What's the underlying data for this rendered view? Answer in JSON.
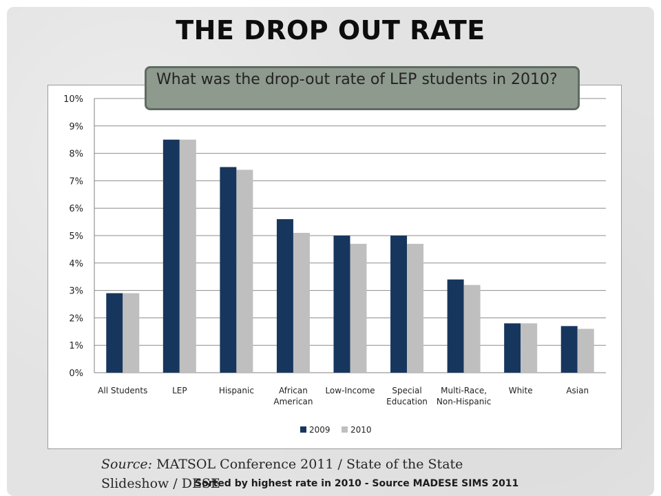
{
  "slide": {
    "title": "THE DROP OUT RATE",
    "callout": "What was the drop-out rate of LEP students in 2010?",
    "source_prefix": "Source:",
    "source_text": "MATSOL Conference 2011 / State of the State Slideshow / DESE",
    "note": "Sorted by highest rate in 2010 - Source MADESE SIMS 2011"
  },
  "colors": {
    "series_2009": "#17365d",
    "series_2010": "#bfbfbf",
    "callout_bg": "#8e9a8e",
    "grid": "#8c8c8c"
  },
  "chart_data": {
    "type": "bar",
    "title": "",
    "xlabel": "",
    "ylabel": "",
    "ylim": [
      0,
      10
    ],
    "yunit": "%",
    "yticks": [
      "0%",
      "1%",
      "2%",
      "3%",
      "4%",
      "5%",
      "6%",
      "7%",
      "8%",
      "9%",
      "10%"
    ],
    "grid": true,
    "legend": "bottom",
    "categories": [
      [
        "All Students"
      ],
      [
        "LEP"
      ],
      [
        "Hispanic"
      ],
      [
        "African",
        "American"
      ],
      [
        "Low-Income"
      ],
      [
        "Special",
        "Education"
      ],
      [
        "Multi-Race,",
        "Non-Hispanic"
      ],
      [
        "White"
      ],
      [
        "Asian"
      ]
    ],
    "series": [
      {
        "name": "2009",
        "values": [
          2.9,
          8.5,
          7.5,
          5.6,
          5.0,
          5.0,
          3.4,
          1.8,
          1.7
        ]
      },
      {
        "name": "2010",
        "values": [
          2.9,
          8.5,
          7.4,
          5.1,
          4.7,
          4.7,
          3.2,
          1.8,
          1.6
        ]
      }
    ]
  }
}
